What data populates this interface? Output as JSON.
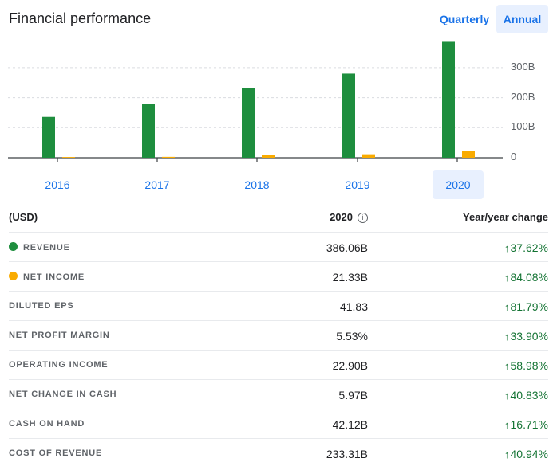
{
  "header": {
    "title": "Financial performance",
    "toggle_quarterly": "Quarterly",
    "toggle_annual": "Annual",
    "selected_period": "Annual"
  },
  "colors": {
    "revenue": "#1e8e3e",
    "net_income": "#f9ab00",
    "accent": "#1a73e8",
    "positive": "#137333"
  },
  "chart_data": {
    "type": "bar",
    "categories": [
      "2016",
      "2017",
      "2018",
      "2019",
      "2020"
    ],
    "series": [
      {
        "name": "REVENUE",
        "values": [
          136,
          178,
          233,
          280,
          386.06
        ]
      },
      {
        "name": "NET INCOME",
        "values": [
          2.4,
          3.0,
          10.1,
          11.6,
          21.33
        ]
      }
    ],
    "yticks": [
      "300B",
      "200B",
      "100B",
      "0"
    ],
    "ytick_values": [
      300,
      200,
      100,
      0
    ],
    "ylim": [
      0,
      400
    ],
    "selected_category": "2020",
    "grid": true,
    "y_axis_position": "right"
  },
  "table": {
    "header_label": "(USD)",
    "header_year": "2020",
    "header_info_icon": "info-icon",
    "header_change": "Year/year change",
    "rows": [
      {
        "label": "REVENUE",
        "value": "386.06B",
        "change": "37.62%",
        "marker": "revenue"
      },
      {
        "label": "NET INCOME",
        "value": "21.33B",
        "change": "84.08%",
        "marker": "net_income"
      },
      {
        "label": "DILUTED EPS",
        "value": "41.83",
        "change": "81.79%"
      },
      {
        "label": "NET PROFIT MARGIN",
        "value": "5.53%",
        "change": "33.90%"
      },
      {
        "label": "OPERATING INCOME",
        "value": "22.90B",
        "change": "58.98%"
      },
      {
        "label": "NET CHANGE IN CASH",
        "value": "5.97B",
        "change": "40.83%"
      },
      {
        "label": "CASH ON HAND",
        "value": "42.12B",
        "change": "16.71%"
      },
      {
        "label": "COST OF REVENUE",
        "value": "233.31B",
        "change": "40.94%"
      }
    ]
  }
}
